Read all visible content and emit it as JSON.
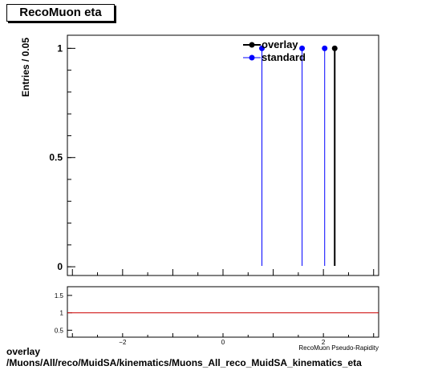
{
  "title": "RecoMuon eta",
  "footer": {
    "line1": "overlay",
    "line2": "/Muons/All/reco/MuidSA/kinematics/Muons_All_reco_MuidSA_kinematics_eta"
  },
  "colors": {
    "overlay": "#000000",
    "standard": "#0000ff",
    "ratio_line": "#cc0000"
  },
  "chart_data": [
    {
      "type": "line",
      "ylabel": "Entries / 0.05",
      "xlabel": "RecoMuon Pseudo-Rapidity",
      "xlim": [
        -3.1,
        3.1
      ],
      "ylim": [
        -0.04,
        1.06
      ],
      "yticks": [
        "0",
        "0.5",
        "1"
      ],
      "legend_position": "top-right",
      "series": [
        {
          "name": "overlay",
          "x": [
            2.225
          ],
          "y": [
            1
          ]
        },
        {
          "name": "standard",
          "x": [
            0.775,
            1.575,
            2.025
          ],
          "y": [
            1,
            1,
            1
          ]
        }
      ]
    },
    {
      "type": "line",
      "xlim": [
        -3.1,
        3.1
      ],
      "ylim": [
        0.3,
        1.75
      ],
      "yticks": [
        "0.5",
        "1",
        "1.5"
      ],
      "xticks": [
        "-2",
        "0",
        "2"
      ],
      "series": [
        {
          "x": [
            -3.1,
            3.1
          ],
          "y": [
            1,
            1
          ]
        }
      ]
    }
  ]
}
